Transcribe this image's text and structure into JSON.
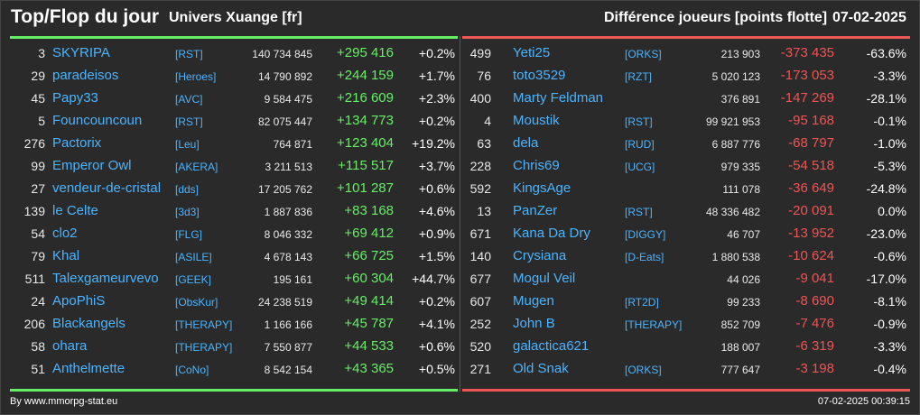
{
  "header": {
    "title": "Top/Flop du jour",
    "subtitle": "Univers Xuange [fr]",
    "diff_label": "Différence joueurs [points flotte]",
    "date": "07-02-2025"
  },
  "colors": {
    "positive": "#66ee66",
    "negative": "#ee5555",
    "link": "#4ab4ff",
    "background": "#2a2a2a"
  },
  "top": [
    {
      "rank": "3",
      "name": "SKYRIPA",
      "guild": "[RST]",
      "points": "140 734 845",
      "delta": "+295 416",
      "pct": "+0.2%"
    },
    {
      "rank": "29",
      "name": "paradeisos",
      "guild": "[Heroes]",
      "points": "14 790 892",
      "delta": "+244 159",
      "pct": "+1.7%"
    },
    {
      "rank": "45",
      "name": "Papy33",
      "guild": "[AVC]",
      "points": "9 584 475",
      "delta": "+216 609",
      "pct": "+2.3%"
    },
    {
      "rank": "5",
      "name": "Founcouncoun",
      "guild": "[RST]",
      "points": "82 075 447",
      "delta": "+134 773",
      "pct": "+0.2%"
    },
    {
      "rank": "276",
      "name": "Pactorix",
      "guild": "[Leu]",
      "points": "764 871",
      "delta": "+123 404",
      "pct": "+19.2%"
    },
    {
      "rank": "99",
      "name": "Emperor Owl",
      "guild": "[AKERA]",
      "points": "3 211 513",
      "delta": "+115 517",
      "pct": "+3.7%"
    },
    {
      "rank": "27",
      "name": "vendeur-de-cristal",
      "guild": "[dds]",
      "points": "17 205 762",
      "delta": "+101 287",
      "pct": "+0.6%"
    },
    {
      "rank": "139",
      "name": "le Celte",
      "guild": "[3d3]",
      "points": "1 887 836",
      "delta": "+83 168",
      "pct": "+4.6%"
    },
    {
      "rank": "54",
      "name": "clo2",
      "guild": "[FLG]",
      "points": "8 046 332",
      "delta": "+69 412",
      "pct": "+0.9%"
    },
    {
      "rank": "79",
      "name": "Khal",
      "guild": "[ASILE]",
      "points": "4 678 143",
      "delta": "+66 725",
      "pct": "+1.5%"
    },
    {
      "rank": "511",
      "name": "Talexgameurvevo",
      "guild": "[GEEK]",
      "points": "195 161",
      "delta": "+60 304",
      "pct": "+44.7%"
    },
    {
      "rank": "24",
      "name": "ApoPhiS",
      "guild": "[ObsKur]",
      "points": "24 238 519",
      "delta": "+49 414",
      "pct": "+0.2%"
    },
    {
      "rank": "206",
      "name": "Blackangels",
      "guild": "[THERAPY]",
      "points": "1 166 166",
      "delta": "+45 787",
      "pct": "+4.1%"
    },
    {
      "rank": "58",
      "name": "ohara",
      "guild": "[THERAPY]",
      "points": "7 550 877",
      "delta": "+44 533",
      "pct": "+0.6%"
    },
    {
      "rank": "51",
      "name": "Anthelmette",
      "guild": "[CoNo]",
      "points": "8 542 154",
      "delta": "+43 365",
      "pct": "+0.5%"
    }
  ],
  "flop": [
    {
      "rank": "499",
      "name": "Yeti25",
      "guild": "[ORKS]",
      "points": "213 903",
      "delta": "-373 435",
      "pct": "-63.6%"
    },
    {
      "rank": "76",
      "name": "toto3529",
      "guild": "[RZT]",
      "points": "5 020 123",
      "delta": "-173 053",
      "pct": "-3.3%"
    },
    {
      "rank": "400",
      "name": "Marty Feldman",
      "guild": "",
      "points": "376 891",
      "delta": "-147 269",
      "pct": "-28.1%"
    },
    {
      "rank": "4",
      "name": "Moustik",
      "guild": "[RST]",
      "points": "99 921 953",
      "delta": "-95 168",
      "pct": "-0.1%"
    },
    {
      "rank": "63",
      "name": "dela",
      "guild": "[RUD]",
      "points": "6 887 776",
      "delta": "-68 797",
      "pct": "-1.0%"
    },
    {
      "rank": "228",
      "name": "Chris69",
      "guild": "[UCG]",
      "points": "979 335",
      "delta": "-54 518",
      "pct": "-5.3%"
    },
    {
      "rank": "592",
      "name": "KingsAge",
      "guild": "",
      "points": "111 078",
      "delta": "-36 649",
      "pct": "-24.8%"
    },
    {
      "rank": "13",
      "name": "PanZer",
      "guild": "[RST]",
      "points": "48 336 482",
      "delta": "-20 091",
      "pct": "0.0%"
    },
    {
      "rank": "671",
      "name": "Kana Da Dry",
      "guild": "[DIGGY]",
      "points": "46 707",
      "delta": "-13 952",
      "pct": "-23.0%"
    },
    {
      "rank": "140",
      "name": "Crysiana",
      "guild": "[D-Eats]",
      "points": "1 880 538",
      "delta": "-10 624",
      "pct": "-0.6%"
    },
    {
      "rank": "677",
      "name": "Mogul Veil",
      "guild": "",
      "points": "44 026",
      "delta": "-9 041",
      "pct": "-17.0%"
    },
    {
      "rank": "607",
      "name": "Mugen",
      "guild": "[RT2D]",
      "points": "99 233",
      "delta": "-8 690",
      "pct": "-8.1%"
    },
    {
      "rank": "252",
      "name": "John B",
      "guild": "[THERAPY]",
      "points": "852 709",
      "delta": "-7 476",
      "pct": "-0.9%"
    },
    {
      "rank": "520",
      "name": "galactica621",
      "guild": "",
      "points": "188 007",
      "delta": "-6 319",
      "pct": "-3.3%"
    },
    {
      "rank": "271",
      "name": "Old Snak",
      "guild": "[ORKS]",
      "points": "777 647",
      "delta": "-3 198",
      "pct": "-0.4%"
    }
  ],
  "footer": {
    "credit": "By www.mmorpg-stat.eu",
    "timestamp": "07-02-2025 00:39:15"
  }
}
